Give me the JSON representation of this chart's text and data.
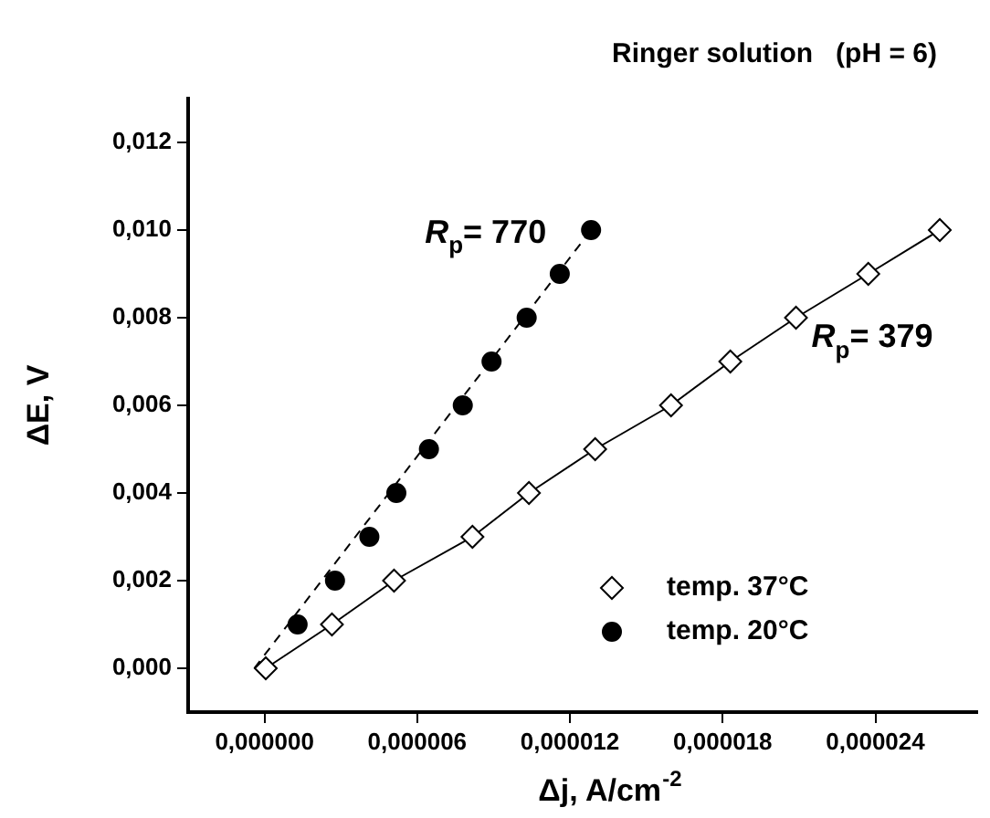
{
  "chart_data": {
    "type": "scatter",
    "title": "Ringer solution   (pH = 6)",
    "xlabel": "Δj, A/cm$^{-2}$",
    "ylabel": "ΔE, V",
    "xlim": [
      -3e-06,
      2.8e-05
    ],
    "xticks": [
      {
        "value": 0,
        "label": "0,000000"
      },
      {
        "value": 6e-06,
        "label": "0,000006"
      },
      {
        "value": 1.2e-05,
        "label": "0,000012"
      },
      {
        "value": 1.8e-05,
        "label": "0,000018"
      },
      {
        "value": 2.4e-05,
        "label": "0,000024"
      }
    ],
    "ylim": [
      -0.001,
      0.013
    ],
    "yticks": [
      {
        "value": 0,
        "label": "0,000"
      },
      {
        "value": 0.002,
        "label": "0,002"
      },
      {
        "value": 0.004,
        "label": "0,004"
      },
      {
        "value": 0.006,
        "label": "0,006"
      },
      {
        "value": 0.008,
        "label": "0,008"
      },
      {
        "value": 0.01,
        "label": "0,010"
      },
      {
        "value": 0.012,
        "label": "0,012"
      }
    ],
    "grid": false,
    "legend": "bottom right",
    "series": [
      {
        "name": "temp. 37°C",
        "type": "line",
        "marker": "diamond",
        "line_style": "solid",
        "color": "#000000",
        "x": [
          5e-08,
          2.65e-06,
          5.09e-06,
          8.17e-06,
          1.039e-05,
          1.299e-05,
          1.597e-05,
          1.83e-05,
          2.088e-05,
          2.372e-05,
          2.653e-05
        ],
        "values": [
          0,
          0.001,
          0.002,
          0.003,
          0.004,
          0.005,
          0.006,
          0.007,
          0.008,
          0.009,
          0.01
        ]
      },
      {
        "name": "temp. 20°C",
        "type": "scatter",
        "marker": "circle",
        "color": "#000000",
        "x": [
          1.3e-06,
          2.77e-06,
          4.12e-06,
          5.18e-06,
          6.46e-06,
          7.79e-06,
          8.92e-06,
          1.03e-05,
          1.16e-05,
          1.283e-05
        ],
        "values": [
          0.001,
          0.002,
          0.003,
          0.004,
          0.005,
          0.006,
          0.007,
          0.008,
          0.009,
          0.01
        ]
      },
      {
        "type": "line",
        "marker": "none",
        "line_style": "dashed",
        "color": "#000000",
        "x": [
          -4e-07,
          1.283e-05
        ],
        "values": [
          0,
          0.01
        ]
      }
    ],
    "annotations": [
      "R$_{p}$= 770",
      "R$_{p}$= 379"
    ]
  }
}
